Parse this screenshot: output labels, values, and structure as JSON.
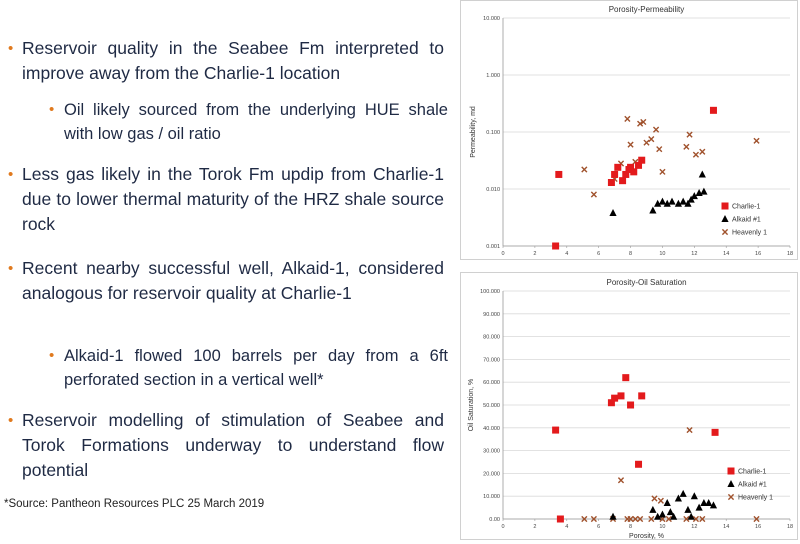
{
  "bullets": [
    {
      "level": 1,
      "text": "Reservoir quality in the Seabee Fm interpreted to improve away from the Charlie-1 location"
    },
    {
      "level": 2,
      "text": "Oil likely sourced from the underlying HUE shale with low gas / oil ratio"
    },
    {
      "level": 1,
      "text": "Less gas likely in the Torok Fm updip from Charlie-1 due to lower thermal maturity of the HRZ shale source rock"
    },
    {
      "level": 1,
      "text": "Recent nearby successful well, Alkaid-1, considered analogous for reservoir quality at Charlie-1"
    },
    {
      "level": 2,
      "text": "Alkaid-1 flowed 100 barrels per day from a 6ft perforated section in a vertical well*"
    },
    {
      "level": 1,
      "text": "Reservoir modelling of stimulation of Seabee and Torok Formations underway to understand flow potential"
    }
  ],
  "source_note": "*Source: Pantheon Resources PLC 25 March 2019",
  "colors": {
    "bullet_dot": "#e07a1f",
    "text": "#1f2a44",
    "charlie": "#e31a1c",
    "alkaid": "#000000",
    "heavenly": "#a0522d"
  },
  "chart_data": [
    {
      "type": "scatter",
      "title": "Porosity-Permeability",
      "xlabel": "Porosity, %",
      "ylabel": "Permeability, md",
      "xlim": [
        0,
        18
      ],
      "ylim": [
        0.001,
        10
      ],
      "yscale": "log",
      "xticks": [
        "0",
        "2",
        "4",
        "6",
        "8",
        "10",
        "12",
        "14",
        "16",
        "18"
      ],
      "yticks": [
        "0.001",
        "0.010",
        "0.100",
        "1.000",
        "10.000"
      ],
      "legend_position": "bottom-right",
      "series": [
        {
          "name": "Charlie-1",
          "marker": "square",
          "color": "#e31a1c",
          "points": [
            [
              3.3,
              0.001
            ],
            [
              3.5,
              0.018
            ],
            [
              6.8,
              0.013
            ],
            [
              7.0,
              0.018
            ],
            [
              7.2,
              0.024
            ],
            [
              7.5,
              0.014
            ],
            [
              7.7,
              0.018
            ],
            [
              7.9,
              0.022
            ],
            [
              8.0,
              0.024
            ],
            [
              8.2,
              0.02
            ],
            [
              8.5,
              0.026
            ],
            [
              8.7,
              0.032
            ],
            [
              13.2,
              0.24
            ]
          ]
        },
        {
          "name": "Alkaid #1",
          "marker": "triangle",
          "color": "#000000",
          "points": [
            [
              6.9,
              0.0038
            ],
            [
              9.4,
              0.0042
            ],
            [
              9.7,
              0.0055
            ],
            [
              10.0,
              0.006
            ],
            [
              10.3,
              0.0055
            ],
            [
              10.6,
              0.006
            ],
            [
              11.0,
              0.0055
            ],
            [
              11.3,
              0.006
            ],
            [
              11.6,
              0.0055
            ],
            [
              11.8,
              0.0065
            ],
            [
              12.0,
              0.0075
            ],
            [
              12.3,
              0.0085
            ],
            [
              12.6,
              0.009
            ],
            [
              12.5,
              0.018
            ]
          ]
        },
        {
          "name": "Heavenly 1",
          "marker": "x",
          "color": "#a0522d",
          "points": [
            [
              5.1,
              0.022
            ],
            [
              5.7,
              0.008
            ],
            [
              7.0,
              0.015
            ],
            [
              7.4,
              0.028
            ],
            [
              7.8,
              0.17
            ],
            [
              8.0,
              0.06
            ],
            [
              8.3,
              0.03
            ],
            [
              8.6,
              0.14
            ],
            [
              8.8,
              0.15
            ],
            [
              9.0,
              0.065
            ],
            [
              9.3,
              0.075
            ],
            [
              9.6,
              0.11
            ],
            [
              9.8,
              0.05
            ],
            [
              10.0,
              0.02
            ],
            [
              11.5,
              0.055
            ],
            [
              11.7,
              0.09
            ],
            [
              12.1,
              0.04
            ],
            [
              12.5,
              0.045
            ],
            [
              15.9,
              0.07
            ]
          ]
        }
      ]
    },
    {
      "type": "scatter",
      "title": "Porosity-Oil Saturation",
      "xlabel": "Porosity, %",
      "ylabel": "Oil Saturation, %",
      "xlim": [
        0,
        18
      ],
      "ylim": [
        0,
        100
      ],
      "xticks": [
        "0",
        "2",
        "4",
        "6",
        "8",
        "10",
        "12",
        "14",
        "16",
        "18"
      ],
      "yticks": [
        "0.00",
        "10.000",
        "20.000",
        "30.000",
        "40.000",
        "50.000",
        "60.000",
        "70.000",
        "80.000",
        "90.000",
        "100.000"
      ],
      "legend_position": "bottom-right",
      "series": [
        {
          "name": "Charlie-1",
          "marker": "square",
          "color": "#e31a1c",
          "points": [
            [
              3.3,
              39
            ],
            [
              3.6,
              0
            ],
            [
              6.8,
              51
            ],
            [
              7.0,
              53
            ],
            [
              7.4,
              54
            ],
            [
              7.7,
              62
            ],
            [
              8.0,
              50
            ],
            [
              8.5,
              24
            ],
            [
              8.7,
              54
            ],
            [
              13.3,
              38
            ]
          ]
        },
        {
          "name": "Alkaid #1",
          "marker": "triangle",
          "color": "#000000",
          "points": [
            [
              6.9,
              1
            ],
            [
              9.4,
              4
            ],
            [
              9.7,
              1
            ],
            [
              10.0,
              2
            ],
            [
              10.3,
              7
            ],
            [
              10.5,
              3
            ],
            [
              10.7,
              1
            ],
            [
              11.0,
              9
            ],
            [
              11.3,
              11
            ],
            [
              11.6,
              4
            ],
            [
              11.8,
              1
            ],
            [
              12.0,
              10
            ],
            [
              12.3,
              5
            ],
            [
              12.6,
              7
            ],
            [
              12.9,
              7
            ],
            [
              13.2,
              6
            ]
          ]
        },
        {
          "name": "Heavenly 1",
          "marker": "x",
          "color": "#a0522d",
          "points": [
            [
              5.1,
              0
            ],
            [
              5.7,
              0
            ],
            [
              6.9,
              0
            ],
            [
              7.4,
              17
            ],
            [
              7.8,
              0
            ],
            [
              8.0,
              0
            ],
            [
              8.3,
              0
            ],
            [
              8.6,
              0
            ],
            [
              9.3,
              0
            ],
            [
              9.5,
              9
            ],
            [
              9.9,
              8
            ],
            [
              10.0,
              0
            ],
            [
              10.4,
              0
            ],
            [
              11.5,
              0
            ],
            [
              11.7,
              39
            ],
            [
              12.1,
              0
            ],
            [
              12.5,
              0
            ],
            [
              15.9,
              0
            ]
          ]
        }
      ]
    }
  ]
}
